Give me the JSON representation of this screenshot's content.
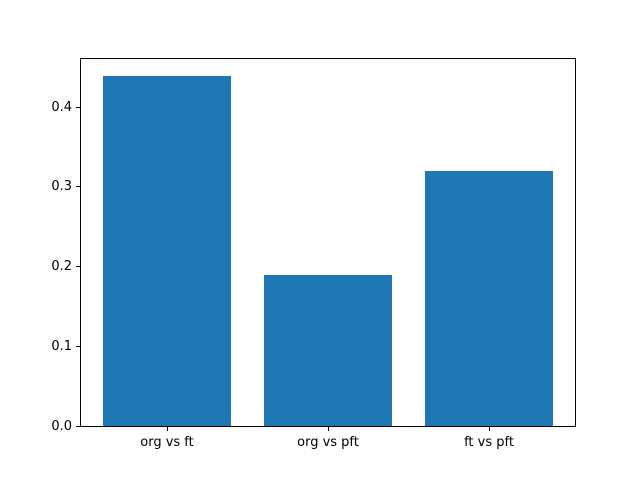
{
  "chart_data": {
    "type": "bar",
    "categories": [
      "org vs ft",
      "org vs pft",
      "ft vs pft"
    ],
    "values": [
      0.44,
      0.19,
      0.32
    ],
    "title": "",
    "xlabel": "",
    "ylabel": "",
    "ylim": [
      0,
      0.462
    ],
    "yticks": [
      0.0,
      0.1,
      0.2,
      0.3,
      0.4
    ],
    "ytick_labels": [
      "0.0",
      "0.1",
      "0.2",
      "0.3",
      "0.4"
    ],
    "bar_width_fraction": 0.8,
    "bar_color": "#1f77b4",
    "spine_color": "#000000",
    "background_color": "#ffffff",
    "grid": false,
    "legend": false
  }
}
